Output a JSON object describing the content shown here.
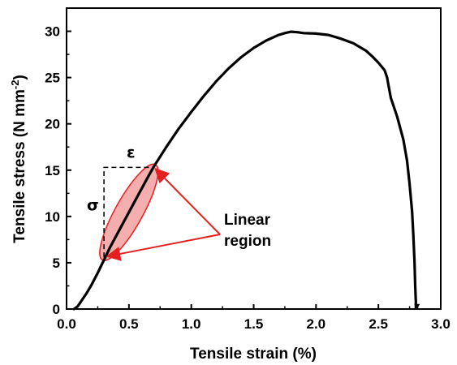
{
  "chart_data": {
    "type": "line",
    "xlabel": "Tensile strain (%)",
    "ylabel_main": "Tensile stress (N mm",
    "ylabel_sup": "-2",
    "ylabel_tail": ")",
    "xlim": [
      0.0,
      3.0
    ],
    "ylim": [
      0,
      32.5
    ],
    "xticks": [
      "0.0",
      "0.5",
      "1.0",
      "1.5",
      "2.0",
      "2.5",
      "3.0"
    ],
    "yticks": [
      "0",
      "5",
      "10",
      "15",
      "20",
      "25",
      "30"
    ],
    "grid": false,
    "legend": "none",
    "series": [
      {
        "color": "#000000",
        "x": [
          0.06,
          0.09,
          0.12,
          0.16,
          0.2,
          0.25,
          0.3,
          0.35,
          0.45,
          0.55,
          0.65,
          0.7,
          0.8,
          0.9,
          1.0,
          1.1,
          1.2,
          1.3,
          1.4,
          1.5,
          1.6,
          1.7,
          1.75,
          1.8,
          1.85,
          1.9,
          2.0,
          2.1,
          2.2,
          2.3,
          2.4,
          2.45,
          2.5,
          2.55,
          2.57,
          2.58,
          2.6,
          2.65,
          2.7,
          2.73,
          2.75,
          2.77,
          2.78,
          2.79,
          2.795,
          2.8,
          2.8,
          2.81
        ],
        "y": [
          0.0,
          0.3,
          0.9,
          1.7,
          2.6,
          3.9,
          5.3,
          6.7,
          9.2,
          11.7,
          14.2,
          15.4,
          17.5,
          19.5,
          21.3,
          23.0,
          24.6,
          26.0,
          27.2,
          28.2,
          29.0,
          29.6,
          29.8,
          29.95,
          29.9,
          29.8,
          29.75,
          29.6,
          29.2,
          28.7,
          27.9,
          27.3,
          26.6,
          25.8,
          25.0,
          24.2,
          22.8,
          20.8,
          18.3,
          16.0,
          13.5,
          10.5,
          8.0,
          5.0,
          2.5,
          0.8,
          0.2,
          0.2
        ]
      }
    ],
    "annotations": {
      "epsilon": "ε",
      "sigma": "σ",
      "linear_region_line1": "Linear",
      "linear_region_line2": "region",
      "highlight_color": "#f2a0a0",
      "highlight_stroke": "#e62020",
      "arrow_color": "#e62020",
      "segment_start": [
        0.3,
        5.6
      ],
      "segment_end": [
        0.7,
        15.3
      ]
    }
  }
}
